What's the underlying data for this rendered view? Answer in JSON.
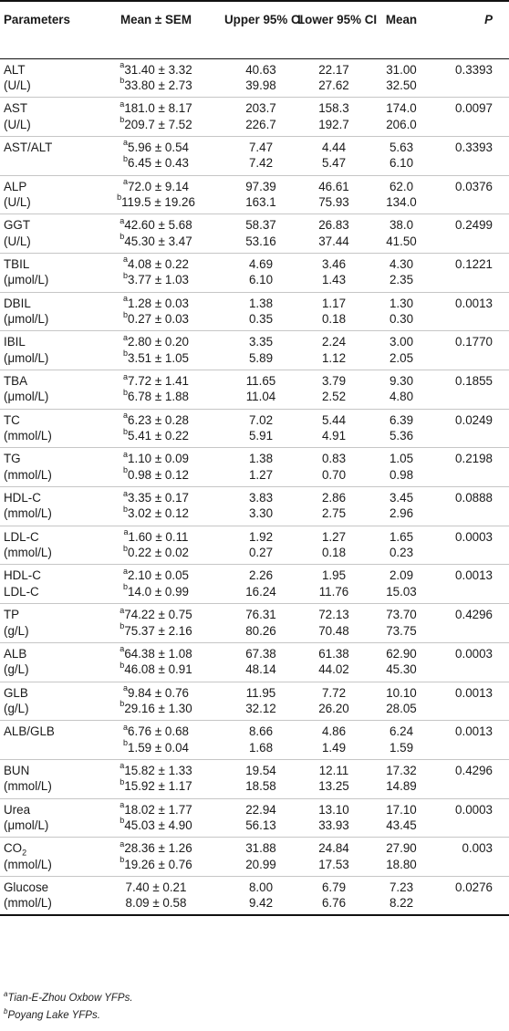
{
  "headers": {
    "param": "Parameters",
    "mean_sem": "Mean ± SEM",
    "upper": [
      "Upper",
      "95% CI"
    ],
    "lower": [
      "Lower",
      "95% CI"
    ],
    "mean": "Mean",
    "p": "P"
  },
  "rows": [
    {
      "name": [
        "ALT",
        "(U/L)"
      ],
      "sem": [
        [
          "a",
          "31.40 ± 3.32"
        ],
        [
          "b",
          "33.80 ± 2.73"
        ]
      ],
      "upper": [
        "40.63",
        "39.98"
      ],
      "lower": [
        "22.17",
        "27.62"
      ],
      "mean": [
        "31.00",
        "32.50"
      ],
      "p": "0.3393"
    },
    {
      "name": [
        "AST",
        "(U/L)"
      ],
      "sem": [
        [
          "a",
          "181.0 ± 8.17"
        ],
        [
          "b",
          "209.7 ± 7.52"
        ]
      ],
      "upper": [
        "203.7",
        "226.7"
      ],
      "lower": [
        "158.3",
        "192.7"
      ],
      "mean": [
        "174.0",
        "206.0"
      ],
      "p": "0.0097"
    },
    {
      "name": [
        "AST/ALT",
        ""
      ],
      "sem": [
        [
          "a",
          "5.96 ± 0.54"
        ],
        [
          "b",
          "6.45 ± 0.43"
        ]
      ],
      "upper": [
        "7.47",
        "7.42"
      ],
      "lower": [
        "4.44",
        "5.47"
      ],
      "mean": [
        "5.63",
        "6.10"
      ],
      "p": "0.3393"
    },
    {
      "name": [
        "ALP",
        "(U/L)"
      ],
      "sem": [
        [
          "a",
          "72.0 ± 9.14"
        ],
        [
          "b",
          "119.5 ± 19.26"
        ]
      ],
      "upper": [
        "97.39",
        "163.1"
      ],
      "lower": [
        "46.61",
        "75.93"
      ],
      "mean": [
        "62.0",
        "134.0"
      ],
      "p": "0.0376"
    },
    {
      "name": [
        "GGT",
        "(U/L)"
      ],
      "sem": [
        [
          "a",
          "42.60 ± 5.68"
        ],
        [
          "b",
          "45.30 ± 3.47"
        ]
      ],
      "upper": [
        "58.37",
        "53.16"
      ],
      "lower": [
        "26.83",
        "37.44"
      ],
      "mean": [
        "38.0",
        "41.50"
      ],
      "p": "0.2499"
    },
    {
      "name": [
        "TBIL",
        "(μmol/L)"
      ],
      "sem": [
        [
          "a",
          "4.08 ± 0.22"
        ],
        [
          "b",
          "3.77 ± 1.03"
        ]
      ],
      "upper": [
        "4.69",
        "6.10"
      ],
      "lower": [
        "3.46",
        "1.43"
      ],
      "mean": [
        "4.30",
        "2.35"
      ],
      "p": "0.1221"
    },
    {
      "name": [
        "DBIL",
        "(μmol/L)"
      ],
      "sem": [
        [
          "a",
          "1.28 ± 0.03"
        ],
        [
          "b",
          "0.27 ± 0.03"
        ]
      ],
      "upper": [
        "1.38",
        "0.35"
      ],
      "lower": [
        "1.17",
        "0.18"
      ],
      "mean": [
        "1.30",
        "0.30"
      ],
      "p": "0.0013"
    },
    {
      "name": [
        "IBIL",
        "(μmol/L)"
      ],
      "sem": [
        [
          "a",
          "2.80 ± 0.20"
        ],
        [
          "b",
          "3.51 ± 1.05"
        ]
      ],
      "upper": [
        "3.35",
        "5.89"
      ],
      "lower": [
        "2.24",
        "1.12"
      ],
      "mean": [
        "3.00",
        "2.05"
      ],
      "p": "0.1770"
    },
    {
      "name": [
        "TBA",
        "(μmol/L)"
      ],
      "sem": [
        [
          "a",
          "7.72 ± 1.41"
        ],
        [
          "b",
          "6.78 ± 1.88"
        ]
      ],
      "upper": [
        "11.65",
        "11.04"
      ],
      "lower": [
        "3.79",
        "2.52"
      ],
      "mean": [
        "9.30",
        "4.80"
      ],
      "p": "0.1855"
    },
    {
      "name": [
        "TC",
        "(mmol/L)"
      ],
      "sem": [
        [
          "a",
          "6.23 ± 0.28"
        ],
        [
          "b",
          "5.41 ± 0.22"
        ]
      ],
      "upper": [
        "7.02",
        "5.91"
      ],
      "lower": [
        "5.44",
        "4.91"
      ],
      "mean": [
        "6.39",
        "5.36"
      ],
      "p": "0.0249"
    },
    {
      "name": [
        "TG",
        "(mmol/L)"
      ],
      "sem": [
        [
          "a",
          "1.10 ± 0.09"
        ],
        [
          "b",
          "0.98 ± 0.12"
        ]
      ],
      "upper": [
        "1.38",
        "1.27"
      ],
      "lower": [
        "0.83",
        "0.70"
      ],
      "mean": [
        "1.05",
        "0.98"
      ],
      "p": "0.2198"
    },
    {
      "name": [
        "HDL-C",
        "(mmol/L)"
      ],
      "sem": [
        [
          "a",
          "3.35 ± 0.17"
        ],
        [
          "b",
          "3.02 ± 0.12"
        ]
      ],
      "upper": [
        "3.83",
        "3.30"
      ],
      "lower": [
        "2.86",
        "2.75"
      ],
      "mean": [
        "3.45",
        "2.96"
      ],
      "p": "0.0888"
    },
    {
      "name": [
        "LDL-C",
        "(mmol/L)"
      ],
      "sem": [
        [
          "a",
          "1.60 ± 0.11"
        ],
        [
          "b",
          "0.22 ± 0.02"
        ]
      ],
      "upper": [
        "1.92",
        "0.27"
      ],
      "lower": [
        "1.27",
        "0.18"
      ],
      "mean": [
        "1.65",
        "0.23"
      ],
      "p": "0.0003"
    },
    {
      "name": [
        "HDL-C",
        "LDL-C"
      ],
      "sem": [
        [
          "a",
          "2.10 ± 0.05"
        ],
        [
          "b",
          "14.0 ± 0.99"
        ]
      ],
      "upper": [
        "2.26",
        "16.24"
      ],
      "lower": [
        "1.95",
        "11.76"
      ],
      "mean": [
        "2.09",
        "15.03"
      ],
      "p": "0.0013"
    },
    {
      "name": [
        "TP",
        "(g/L)"
      ],
      "sem": [
        [
          "a",
          "74.22 ± 0.75"
        ],
        [
          "b",
          "75.37 ± 2.16"
        ]
      ],
      "upper": [
        "76.31",
        "80.26"
      ],
      "lower": [
        "72.13",
        "70.48"
      ],
      "mean": [
        "73.70",
        "73.75"
      ],
      "p": "0.4296"
    },
    {
      "name": [
        "ALB",
        "(g/L)"
      ],
      "sem": [
        [
          "a",
          "64.38 ± 1.08"
        ],
        [
          "b",
          "46.08 ± 0.91"
        ]
      ],
      "upper": [
        "67.38",
        "48.14"
      ],
      "lower": [
        "61.38",
        "44.02"
      ],
      "mean": [
        "62.90",
        "45.30"
      ],
      "p": "0.0003"
    },
    {
      "name": [
        "GLB",
        "(g/L)"
      ],
      "sem": [
        [
          "a",
          "9.84 ± 0.76"
        ],
        [
          "b",
          "29.16 ± 1.30"
        ]
      ],
      "upper": [
        "11.95",
        "32.12"
      ],
      "lower": [
        "7.72",
        "26.20"
      ],
      "mean": [
        "10.10",
        "28.05"
      ],
      "p": "0.0013"
    },
    {
      "name": [
        "ALB/GLB",
        ""
      ],
      "sem": [
        [
          "a",
          "6.76 ± 0.68"
        ],
        [
          "b",
          "1.59 ± 0.04"
        ]
      ],
      "upper": [
        "8.66",
        "1.68"
      ],
      "lower": [
        "4.86",
        "1.49"
      ],
      "mean": [
        "6.24",
        "1.59"
      ],
      "p": "0.0013"
    },
    {
      "name": [
        "BUN",
        "(mmol/L)"
      ],
      "sem": [
        [
          "a",
          "15.82 ± 1.33"
        ],
        [
          "b",
          "15.92 ± 1.17"
        ]
      ],
      "upper": [
        "19.54",
        "18.58"
      ],
      "lower": [
        "12.11",
        "13.25"
      ],
      "mean": [
        "17.32",
        "14.89"
      ],
      "p": "0.4296"
    },
    {
      "name": [
        "Urea",
        "(μmol/L)"
      ],
      "sem": [
        [
          "a",
          "18.02 ± 1.77"
        ],
        [
          "b",
          "45.03 ± 4.90"
        ]
      ],
      "upper": [
        "22.94",
        "56.13"
      ],
      "lower": [
        "13.10",
        "33.93"
      ],
      "mean": [
        "17.10",
        "43.45"
      ],
      "p": "0.0003"
    },
    {
      "name": [
        "CO|2",
        "(mmol/L)"
      ],
      "sem": [
        [
          "a",
          "28.36 ± 1.26"
        ],
        [
          "b",
          "19.26 ± 0.76"
        ]
      ],
      "upper": [
        "31.88",
        "20.99"
      ],
      "lower": [
        "24.84",
        "17.53"
      ],
      "mean": [
        "27.90",
        "18.80"
      ],
      "p": "0.003"
    },
    {
      "name": [
        "Glucose",
        "(mmol/L)"
      ],
      "sem": [
        [
          "",
          "7.40 ± 0.21"
        ],
        [
          "",
          "8.09 ± 0.58"
        ]
      ],
      "upper": [
        "8.00",
        "9.42"
      ],
      "lower": [
        "6.79",
        "6.76"
      ],
      "mean": [
        "7.23",
        "8.22"
      ],
      "p": "0.0276"
    }
  ],
  "footnotes": [
    {
      "mark": "a",
      "text": "Tian-E-Zhou Oxbow YFPs."
    },
    {
      "mark": "b",
      "text": "Poyang Lake YFPs."
    }
  ]
}
